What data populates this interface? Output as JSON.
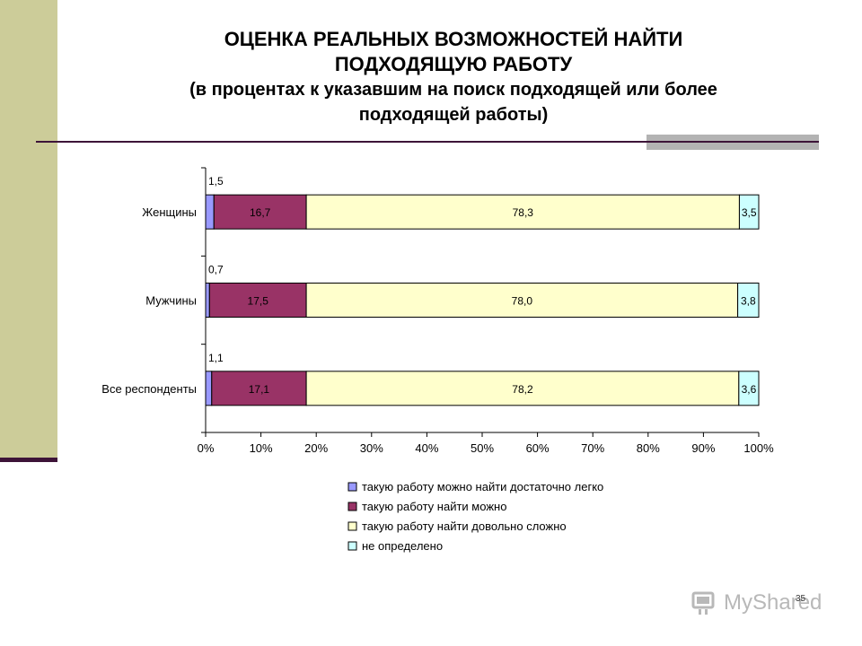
{
  "slide": {
    "title_line1": "ОЦЕНКА РЕАЛЬНЫХ ВОЗМОЖНОСТЕЙ НАЙТИ",
    "title_line2": "ПОДХОДЯЩУЮ РАБОТУ",
    "subtitle_line1": "(в процентах к указавшим на поиск подходящей или более",
    "subtitle_line2": "подходящей работы)",
    "page_number": "35",
    "watermark_text": "MyShared",
    "accent_color": "#cccc99",
    "rule_color": "#3d1438"
  },
  "chart_data": {
    "type": "bar",
    "orientation": "horizontal",
    "stacked": true,
    "percent": true,
    "categories": [
      "Женщины",
      "Мужчины",
      "Все респонденты"
    ],
    "series": [
      {
        "name": "такую работу  можно найти достаточно легко",
        "color": "#9999ff",
        "values": [
          1.5,
          0.7,
          1.1
        ],
        "labels": [
          "1,5",
          "0,7",
          "1,1"
        ]
      },
      {
        "name": "такую работу  найти можно",
        "color": "#993366",
        "values": [
          16.7,
          17.5,
          17.1
        ],
        "labels": [
          "16,7",
          "17,5",
          "17,1"
        ]
      },
      {
        "name": "такую работу найти довольно сложно",
        "color": "#ffffcc",
        "values": [
          78.3,
          78.0,
          78.2
        ],
        "labels": [
          "78,3",
          "78,0",
          "78,2"
        ]
      },
      {
        "name": "не определено",
        "color": "#ccffff",
        "values": [
          3.5,
          3.8,
          3.6
        ],
        "labels": [
          "3,5",
          "3,8",
          "3,6"
        ]
      }
    ],
    "x_ticks": [
      "0%",
      "10%",
      "20%",
      "30%",
      "40%",
      "50%",
      "60%",
      "70%",
      "80%",
      "90%",
      "100%"
    ],
    "xlim": [
      0,
      100
    ],
    "grid": false,
    "legend_position": "bottom"
  }
}
